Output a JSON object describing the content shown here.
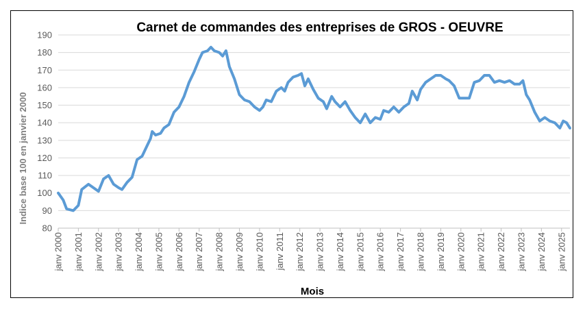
{
  "chart_data": {
    "type": "line",
    "title": "Carnet de commandes des entreprises de GROS - OEUVRE",
    "xlabel": "Mois",
    "ylabel": "Indice base 100 en janvier 2000",
    "ylim": [
      80,
      190
    ],
    "yticks": [
      80,
      90,
      100,
      110,
      120,
      130,
      140,
      150,
      160,
      170,
      180,
      190
    ],
    "xtick_labels": [
      "janv 2000",
      "janv 2001",
      "janv 2002",
      "janv 2003",
      "janv 2004",
      "janv 2005",
      "janv 2006",
      "janv 2007",
      "janv 2008",
      "janv 2009",
      "janv 2010",
      "janv 2011",
      "janv 2012",
      "janv 2013",
      "janv 2014",
      "janv 2015",
      "janv 2016",
      "janv 2017",
      "janv 2018",
      "janv 2019",
      "janv 2020",
      "janv 2021",
      "janv 2022",
      "janv 2023",
      "janv 2024",
      "janv 2025"
    ],
    "x_start": "2000-01",
    "x_end": "2025-06",
    "grid": true,
    "line_color": "#5b9bd5",
    "series": [
      {
        "points": [
          [
            "2000-01",
            100
          ],
          [
            "2000-04",
            96
          ],
          [
            "2000-06",
            91
          ],
          [
            "2000-10",
            90
          ],
          [
            "2001-01",
            93
          ],
          [
            "2001-03",
            102
          ],
          [
            "2001-07",
            105
          ],
          [
            "2001-10",
            103
          ],
          [
            "2002-01",
            101
          ],
          [
            "2002-04",
            108
          ],
          [
            "2002-07",
            110
          ],
          [
            "2002-10",
            105
          ],
          [
            "2003-01",
            103
          ],
          [
            "2003-03",
            102
          ],
          [
            "2003-06",
            106
          ],
          [
            "2003-09",
            109
          ],
          [
            "2003-12",
            119
          ],
          [
            "2004-03",
            121
          ],
          [
            "2004-06",
            127
          ],
          [
            "2004-08",
            131
          ],
          [
            "2004-09",
            135
          ],
          [
            "2004-11",
            133
          ],
          [
            "2005-02",
            134
          ],
          [
            "2005-04",
            137
          ],
          [
            "2005-07",
            139
          ],
          [
            "2005-10",
            146
          ],
          [
            "2006-01",
            149
          ],
          [
            "2006-04",
            155
          ],
          [
            "2006-07",
            163
          ],
          [
            "2006-10",
            169
          ],
          [
            "2007-01",
            176
          ],
          [
            "2007-03",
            180
          ],
          [
            "2007-06",
            181
          ],
          [
            "2007-08",
            183
          ],
          [
            "2007-10",
            181
          ],
          [
            "2008-01",
            180
          ],
          [
            "2008-03",
            178
          ],
          [
            "2008-05",
            181
          ],
          [
            "2008-07",
            172
          ],
          [
            "2008-10",
            165
          ],
          [
            "2009-01",
            156
          ],
          [
            "2009-04",
            153
          ],
          [
            "2009-07",
            152
          ],
          [
            "2009-10",
            149
          ],
          [
            "2010-01",
            147
          ],
          [
            "2010-03",
            149
          ],
          [
            "2010-05",
            153
          ],
          [
            "2010-08",
            152
          ],
          [
            "2010-11",
            158
          ],
          [
            "2011-02",
            160
          ],
          [
            "2011-04",
            158
          ],
          [
            "2011-06",
            163
          ],
          [
            "2011-09",
            166
          ],
          [
            "2011-12",
            167
          ],
          [
            "2012-02",
            168
          ],
          [
            "2012-04",
            161
          ],
          [
            "2012-06",
            165
          ],
          [
            "2012-09",
            159
          ],
          [
            "2012-12",
            154
          ],
          [
            "2013-03",
            152
          ],
          [
            "2013-05",
            148
          ],
          [
            "2013-08",
            155
          ],
          [
            "2013-10",
            152
          ],
          [
            "2014-01",
            149
          ],
          [
            "2014-04",
            152
          ],
          [
            "2014-07",
            147
          ],
          [
            "2014-10",
            143
          ],
          [
            "2015-01",
            140
          ],
          [
            "2015-04",
            145
          ],
          [
            "2015-07",
            140
          ],
          [
            "2015-10",
            143
          ],
          [
            "2016-01",
            142
          ],
          [
            "2016-03",
            147
          ],
          [
            "2016-06",
            146
          ],
          [
            "2016-09",
            149
          ],
          [
            "2016-12",
            146
          ],
          [
            "2017-03",
            149
          ],
          [
            "2017-06",
            151
          ],
          [
            "2017-08",
            158
          ],
          [
            "2017-11",
            153
          ],
          [
            "2018-01",
            159
          ],
          [
            "2018-04",
            163
          ],
          [
            "2018-07",
            165
          ],
          [
            "2018-10",
            167
          ],
          [
            "2019-01",
            167
          ],
          [
            "2019-04",
            165
          ],
          [
            "2019-06",
            164
          ],
          [
            "2019-09",
            161
          ],
          [
            "2019-12",
            154
          ],
          [
            "2020-03",
            154
          ],
          [
            "2020-06",
            154
          ],
          [
            "2020-09",
            163
          ],
          [
            "2020-12",
            164
          ],
          [
            "2021-03",
            167
          ],
          [
            "2021-06",
            167
          ],
          [
            "2021-09",
            163
          ],
          [
            "2021-12",
            164
          ],
          [
            "2022-03",
            163
          ],
          [
            "2022-06",
            164
          ],
          [
            "2022-09",
            162
          ],
          [
            "2022-12",
            162
          ],
          [
            "2023-02",
            164
          ],
          [
            "2023-04",
            156
          ],
          [
            "2023-06",
            153
          ],
          [
            "2023-09",
            146
          ],
          [
            "2023-12",
            141
          ],
          [
            "2024-03",
            143
          ],
          [
            "2024-06",
            141
          ],
          [
            "2024-09",
            140
          ],
          [
            "2024-12",
            137
          ],
          [
            "2025-02",
            141
          ],
          [
            "2025-04",
            140
          ],
          [
            "2025-06",
            137
          ]
        ]
      }
    ]
  }
}
